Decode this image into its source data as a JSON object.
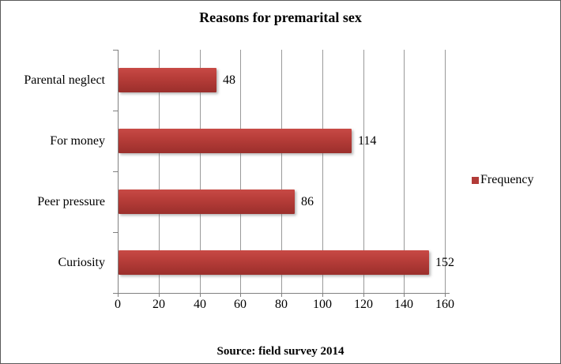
{
  "chart_data": {
    "type": "bar",
    "orientation": "horizontal",
    "title": "Reasons for premarital sex",
    "categories": [
      "Parental neglect",
      "For money",
      "Peer pressure",
      "Curiosity"
    ],
    "series": [
      {
        "name": "Frequency",
        "values": [
          48,
          114,
          86,
          152
        ]
      }
    ],
    "data_labels": [
      "48",
      "114",
      "86",
      "152"
    ],
    "xlabel": "",
    "ylabel": "",
    "xlim": [
      0,
      160
    ],
    "xticks": [
      0,
      20,
      40,
      60,
      80,
      100,
      120,
      140,
      160
    ],
    "grid": "vertical-only",
    "legend_position": "right",
    "legend": [
      "Frequency"
    ],
    "source_note": "Source: field survey 2014",
    "colors": {
      "bar_top": "#c84a45",
      "bar_bottom": "#9b2f2c",
      "legend_swatch": "#b23b38",
      "gridline": "#9a9a9a",
      "axis": "#808080",
      "frame_border": "#5a5a5a",
      "text": "#000000"
    }
  }
}
